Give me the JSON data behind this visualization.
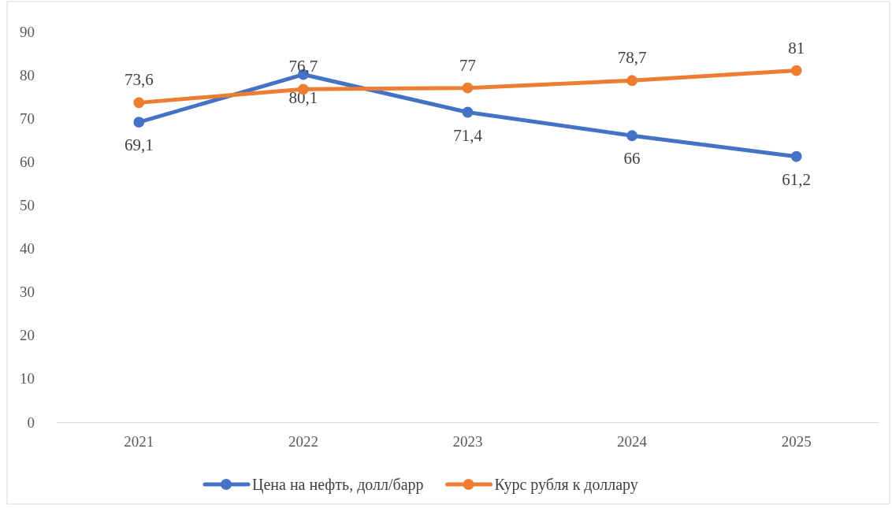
{
  "chart_data": {
    "type": "line",
    "categories": [
      "2021",
      "2022",
      "2023",
      "2024",
      "2025"
    ],
    "series": [
      {
        "name": "Цена на нефть, долл/барр",
        "color": "#4472c4",
        "values": [
          69.1,
          80.1,
          71.4,
          66,
          61.2
        ],
        "value_labels": [
          "69,1",
          "80,1",
          "71,4",
          "66",
          "61,2"
        ]
      },
      {
        "name": "Курс рубля к доллару",
        "color": "#ed7d31",
        "values": [
          73.6,
          76.7,
          77,
          78.7,
          81
        ],
        "value_labels": [
          "73,6",
          "76,7",
          "77",
          "78,7",
          "81"
        ]
      }
    ],
    "ylim": [
      0,
      90
    ],
    "yticks": [
      0,
      10,
      20,
      30,
      40,
      50,
      60,
      70,
      80,
      90
    ],
    "grid": false,
    "legend": "bottom",
    "marker": "circle",
    "line_style": "solid"
  }
}
